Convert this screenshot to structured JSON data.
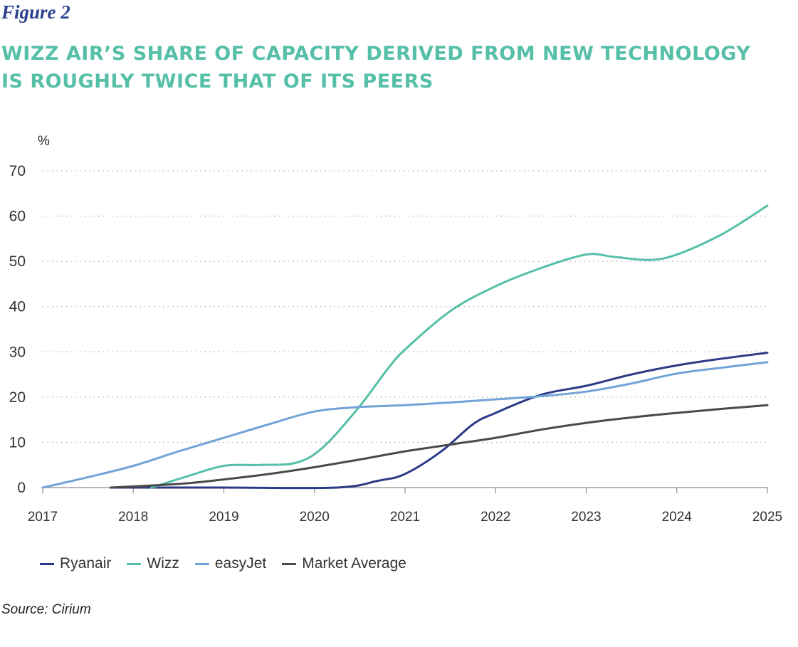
{
  "figure_label": "Figure 2",
  "title_lines": [
    "WIZZ AIR’S SHARE OF CAPACITY DERIVED FROM NEW TECHNOLOGY",
    "IS ROUGHLY TWICE THAT OF ITS PEERS"
  ],
  "source": "Source: Cirium",
  "chart_data": {
    "type": "line",
    "title": "WIZZ AIR’S SHARE OF CAPACITY DERIVED FROM NEW TECHNOLOGY IS ROUGHLY TWICE THAT OF ITS PEERS",
    "ylabel": "%",
    "xlabel": "",
    "ylim": [
      0,
      70
    ],
    "yticks": [
      0,
      10,
      20,
      30,
      40,
      50,
      60,
      70
    ],
    "xlim": [
      2017,
      2025
    ],
    "xticks": [
      2017,
      2018,
      2019,
      2020,
      2021,
      2022,
      2023,
      2024,
      2025
    ],
    "grid": "horizontal dotted",
    "legend_position": "bottom-left",
    "series": [
      {
        "name": "Ryanair",
        "color": "#2b3a86",
        "points": [
          [
            2017.75,
            0
          ],
          [
            2019,
            0
          ],
          [
            2020.25,
            0
          ],
          [
            2020.7,
            1.5
          ],
          [
            2021,
            3
          ],
          [
            2021.4,
            8
          ],
          [
            2021.75,
            14
          ],
          [
            2022,
            16.5
          ],
          [
            2022.5,
            20.5
          ],
          [
            2023,
            22.5
          ],
          [
            2023.5,
            25
          ],
          [
            2024,
            27
          ],
          [
            2024.5,
            28.5
          ],
          [
            2025,
            29.8
          ]
        ]
      },
      {
        "name": "Wizz",
        "color": "#56bfa8",
        "points": [
          [
            2018.2,
            0
          ],
          [
            2018.6,
            2.5
          ],
          [
            2019,
            4.8
          ],
          [
            2019.4,
            5
          ],
          [
            2019.8,
            5.5
          ],
          [
            2020.1,
            9
          ],
          [
            2020.5,
            18
          ],
          [
            2020.8,
            26
          ],
          [
            2021,
            30.5
          ],
          [
            2021.5,
            39
          ],
          [
            2022,
            44.5
          ],
          [
            2022.5,
            48.5
          ],
          [
            2023,
            51.5
          ],
          [
            2023.3,
            51
          ],
          [
            2023.7,
            50.3
          ],
          [
            2024,
            51.5
          ],
          [
            2024.5,
            56
          ],
          [
            2025,
            62.3
          ]
        ]
      },
      {
        "name": "easyJet",
        "color": "#72a3d7",
        "points": [
          [
            2017,
            0
          ],
          [
            2017.5,
            2.3
          ],
          [
            2018,
            4.8
          ],
          [
            2018.5,
            8
          ],
          [
            2019,
            11
          ],
          [
            2019.5,
            14
          ],
          [
            2020,
            16.8
          ],
          [
            2020.5,
            17.8
          ],
          [
            2021,
            18.2
          ],
          [
            2021.5,
            18.8
          ],
          [
            2022,
            19.5
          ],
          [
            2022.5,
            20.2
          ],
          [
            2023,
            21.2
          ],
          [
            2023.5,
            23
          ],
          [
            2024,
            25.2
          ],
          [
            2024.5,
            26.5
          ],
          [
            2025,
            27.7
          ]
        ]
      },
      {
        "name": "Market Average",
        "color": "#4a4a4a",
        "points": [
          [
            2017.75,
            0
          ],
          [
            2018.5,
            0.8
          ],
          [
            2019,
            1.8
          ],
          [
            2019.5,
            3
          ],
          [
            2020,
            4.5
          ],
          [
            2020.5,
            6.2
          ],
          [
            2021,
            8
          ],
          [
            2021.5,
            9.5
          ],
          [
            2022,
            11
          ],
          [
            2022.5,
            12.8
          ],
          [
            2023,
            14.3
          ],
          [
            2023.5,
            15.5
          ],
          [
            2024,
            16.5
          ],
          [
            2024.5,
            17.4
          ],
          [
            2025,
            18.2
          ]
        ]
      }
    ]
  }
}
